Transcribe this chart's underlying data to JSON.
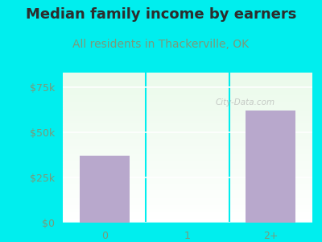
{
  "title": "Median family income by earners",
  "subtitle": "All residents in Thackerville, OK",
  "categories": [
    "0",
    "1",
    "2+"
  ],
  "values": [
    37000,
    0,
    62000
  ],
  "bar_color": "#b8a8cc",
  "title_color": "#2d2d2d",
  "subtitle_color": "#7a9a7a",
  "outer_bg": "#00eeee",
  "yticks": [
    0,
    25000,
    50000,
    75000
  ],
  "ytick_labels": [
    "$0",
    "$25k",
    "$50k",
    "$75k"
  ],
  "ylim": [
    0,
    83000
  ],
  "watermark": "City-Data.com",
  "title_fontsize": 13,
  "subtitle_fontsize": 10,
  "tick_color": "#7a9a7a"
}
